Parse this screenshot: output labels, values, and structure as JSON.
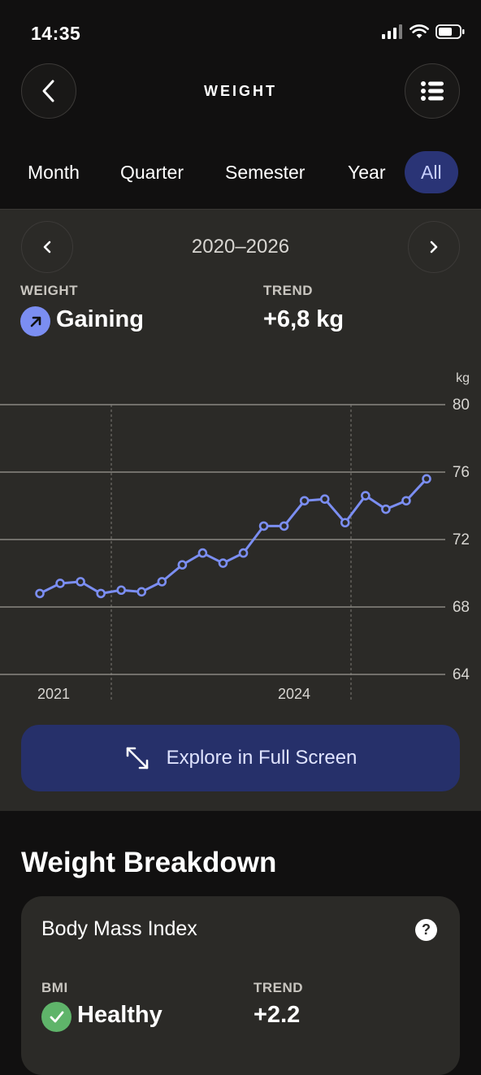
{
  "status_bar": {
    "time": "14:35"
  },
  "header": {
    "title": "WEIGHT"
  },
  "periods": [
    "Month",
    "Quarter",
    "Semester",
    "Year",
    "All"
  ],
  "selected_period": "All",
  "range": {
    "label": "2020–2026"
  },
  "stats": {
    "weight_label": "WEIGHT",
    "weight_value": "Gaining",
    "trend_label": "TREND",
    "trend_value": "+6,8 kg"
  },
  "chart_data": {
    "type": "line",
    "unit": "kg",
    "ylim": [
      64,
      80
    ],
    "yticks": [
      "80",
      "76",
      "72",
      "68",
      "64"
    ],
    "xticks": [
      "2021",
      "2024"
    ],
    "grid": true,
    "color": "#7b8ef2",
    "series": [
      {
        "values": [
          68.8,
          69.4,
          69.5,
          68.8,
          69.0,
          68.9,
          69.5,
          70.5,
          71.2,
          70.6,
          71.2,
          72.8,
          72.8,
          74.3,
          74.4,
          73.0,
          74.6,
          73.8,
          74.3,
          75.6
        ]
      }
    ]
  },
  "explore_button": {
    "label": "Explore in Full Screen"
  },
  "breakdown": {
    "title": "Weight Breakdown",
    "card_title": "Body Mass Index",
    "help": "?",
    "bmi_label": "BMI",
    "bmi_value": "Healthy",
    "trend_label": "TREND",
    "trend_value": "+2.2"
  }
}
